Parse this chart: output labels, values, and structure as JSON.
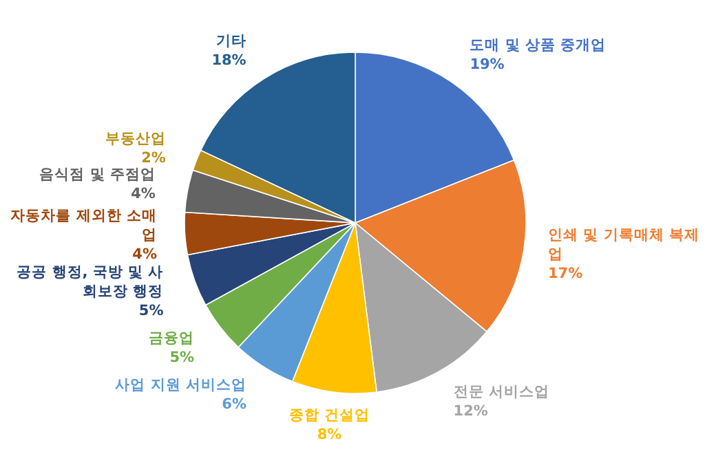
{
  "chart_data": {
    "type": "pie",
    "categories": [
      "도매 및 상품 중개업",
      "인쇄 및 기록매체 복제업",
      "전문 서비스업",
      "종합 건설업",
      "사업 지원 서비스업",
      "금융업",
      "공공 행정, 국방 및 사회보장 행정",
      "자동차를 제외한 소매업",
      "음식점 및 주점업",
      "부동산업",
      "기타"
    ],
    "values": [
      19,
      17,
      12,
      8,
      6,
      5,
      5,
      4,
      4,
      2,
      18
    ],
    "value_labels": [
      "19%",
      "17%",
      "12%",
      "8%",
      "6%",
      "5%",
      "5%",
      "4%",
      "4%",
      "2%",
      "18%"
    ],
    "colors": [
      "#4472c4",
      "#ed7d31",
      "#a5a5a5",
      "#ffc000",
      "#5b9bd5",
      "#70ad47",
      "#264478",
      "#9e480e",
      "#636363",
      "#b8901c",
      "#255e91"
    ]
  }
}
